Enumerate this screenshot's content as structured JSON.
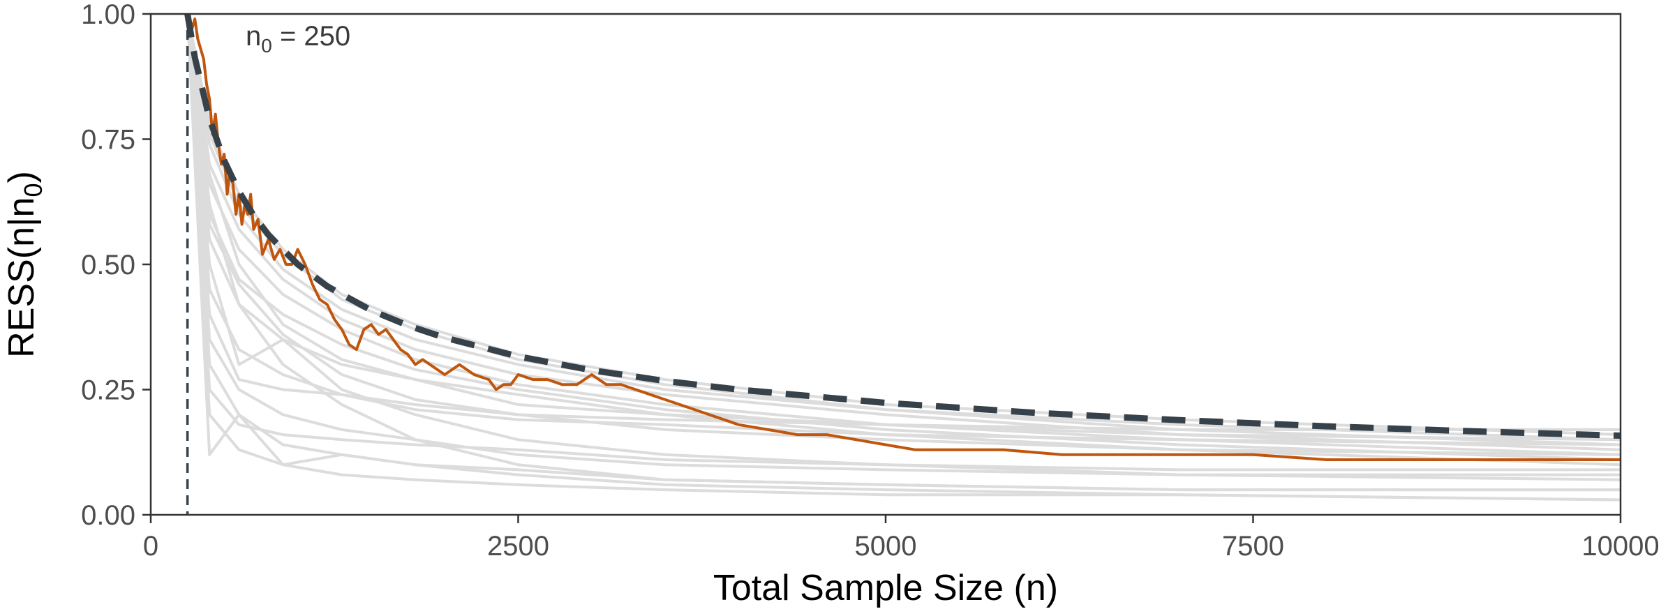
{
  "chart_data": {
    "type": "line",
    "xlabel": "Total Sample Size (n)",
    "ylabel_main": "RESS(n|n",
    "ylabel_sub": "0",
    "ylabel_end": ")",
    "xlim": [
      0,
      10000
    ],
    "ylim": [
      0,
      1
    ],
    "x_ticks": [
      0,
      2500,
      5000,
      7500,
      10000
    ],
    "x_tick_labels": [
      "0",
      "2500",
      "5000",
      "7500",
      "10000"
    ],
    "y_ticks": [
      0,
      0.25,
      0.5,
      0.75,
      1
    ],
    "y_tick_labels": [
      "0.00",
      "0.25",
      "0.50",
      "0.75",
      "1.00"
    ],
    "grid": false,
    "n0": 250,
    "annotation": {
      "prefix": "n",
      "sub": "0",
      "suffix": " = 250"
    },
    "colors": {
      "bound": "#36414a",
      "highlight": "#c0560d",
      "background_series": "#dcdcdc",
      "vline": "#36414a"
    },
    "bound": {
      "x": [
        250,
        300,
        400,
        500,
        600,
        700,
        800,
        1000,
        1200,
        1500,
        1750,
        2000,
        2500,
        3000,
        3500,
        4000,
        5000,
        6000,
        7000,
        8000,
        9000,
        10000
      ],
      "y": [
        1.0,
        0.9129,
        0.7906,
        0.7071,
        0.6455,
        0.5976,
        0.559,
        0.5,
        0.4564,
        0.4082,
        0.378,
        0.3536,
        0.3162,
        0.2887,
        0.2673,
        0.25,
        0.2236,
        0.2041,
        0.189,
        0.1768,
        0.1667,
        0.1581
      ]
    },
    "highlight": {
      "x": [
        250,
        280,
        300,
        320,
        340,
        360,
        380,
        400,
        420,
        440,
        460,
        480,
        500,
        520,
        540,
        560,
        580,
        600,
        620,
        640,
        660,
        680,
        700,
        730,
        760,
        800,
        840,
        880,
        920,
        960,
        1000,
        1050,
        1100,
        1150,
        1200,
        1250,
        1300,
        1350,
        1400,
        1450,
        1500,
        1550,
        1600,
        1650,
        1700,
        1750,
        1800,
        1850,
        1900,
        2000,
        2100,
        2200,
        2300,
        2350,
        2400,
        2450,
        2500,
        2600,
        2700,
        2800,
        2900,
        3000,
        3100,
        3200,
        3300,
        3400,
        3500,
        3600,
        3800,
        4000,
        4200,
        4400,
        4600,
        4800,
        5000,
        5200,
        5500,
        5800,
        6200,
        6600,
        7000,
        7500,
        8000,
        8500,
        9000,
        9500,
        10000
      ],
      "y": [
        1.0,
        0.97,
        0.99,
        0.95,
        0.93,
        0.91,
        0.86,
        0.83,
        0.76,
        0.8,
        0.74,
        0.7,
        0.72,
        0.64,
        0.69,
        0.66,
        0.6,
        0.64,
        0.58,
        0.62,
        0.6,
        0.64,
        0.57,
        0.59,
        0.52,
        0.55,
        0.51,
        0.53,
        0.5,
        0.5,
        0.53,
        0.5,
        0.46,
        0.43,
        0.42,
        0.39,
        0.37,
        0.34,
        0.33,
        0.37,
        0.38,
        0.36,
        0.37,
        0.35,
        0.33,
        0.32,
        0.3,
        0.31,
        0.3,
        0.28,
        0.3,
        0.28,
        0.27,
        0.25,
        0.26,
        0.26,
        0.28,
        0.27,
        0.27,
        0.26,
        0.26,
        0.28,
        0.26,
        0.26,
        0.25,
        0.24,
        0.23,
        0.22,
        0.2,
        0.18,
        0.17,
        0.16,
        0.16,
        0.15,
        0.14,
        0.13,
        0.13,
        0.13,
        0.12,
        0.12,
        0.12,
        0.12,
        0.11,
        0.11,
        0.11,
        0.11,
        0.11
      ]
    },
    "background_series": [
      {
        "x": [
          250,
          400,
          600,
          900,
          1300,
          1800,
          2500,
          3500,
          5000,
          7000,
          10000
        ],
        "y": [
          1.0,
          0.78,
          0.64,
          0.53,
          0.44,
          0.38,
          0.32,
          0.27,
          0.22,
          0.19,
          0.16
        ]
      },
      {
        "x": [
          250,
          400,
          600,
          900,
          1300,
          1800,
          2500,
          3500,
          5000,
          7000,
          10000
        ],
        "y": [
          1.0,
          0.76,
          0.62,
          0.52,
          0.43,
          0.37,
          0.31,
          0.26,
          0.21,
          0.18,
          0.15
        ]
      },
      {
        "x": [
          250,
          400,
          600,
          900,
          1300,
          1800,
          2500,
          3500,
          5000,
          7000,
          10000
        ],
        "y": [
          1.0,
          0.74,
          0.6,
          0.49,
          0.41,
          0.35,
          0.3,
          0.25,
          0.21,
          0.17,
          0.14
        ]
      },
      {
        "x": [
          250,
          400,
          600,
          900,
          1300,
          1800,
          2500,
          3500,
          5000,
          7000,
          10000
        ],
        "y": [
          1.0,
          0.7,
          0.57,
          0.47,
          0.39,
          0.33,
          0.28,
          0.24,
          0.2,
          0.16,
          0.13
        ]
      },
      {
        "x": [
          250,
          400,
          600,
          900,
          1300,
          1800,
          2500,
          3500,
          5000,
          7000,
          10000
        ],
        "y": [
          1.0,
          0.66,
          0.53,
          0.44,
          0.37,
          0.31,
          0.26,
          0.22,
          0.18,
          0.15,
          0.12
        ]
      },
      {
        "x": [
          250,
          400,
          600,
          900,
          1300,
          1800,
          2500,
          3500,
          5000,
          7000,
          10000
        ],
        "y": [
          1.0,
          0.6,
          0.47,
          0.4,
          0.34,
          0.29,
          0.25,
          0.21,
          0.17,
          0.14,
          0.11
        ]
      },
      {
        "x": [
          250,
          400,
          600,
          900,
          1300,
          1800,
          2500,
          3500,
          5000,
          7000,
          10000
        ],
        "y": [
          1.0,
          0.55,
          0.42,
          0.35,
          0.3,
          0.27,
          0.24,
          0.2,
          0.16,
          0.13,
          0.1
        ]
      },
      {
        "x": [
          250,
          400,
          600,
          900,
          1300,
          1800,
          2500,
          3500,
          5000,
          7000,
          10000
        ],
        "y": [
          1.0,
          0.45,
          0.33,
          0.28,
          0.24,
          0.21,
          0.19,
          0.18,
          0.16,
          0.15,
          0.14
        ]
      },
      {
        "x": [
          250,
          400,
          600,
          900,
          1300,
          1800,
          2500,
          3500,
          5000,
          7000,
          10000
        ],
        "y": [
          1.0,
          0.35,
          0.25,
          0.2,
          0.17,
          0.15,
          0.12,
          0.1,
          0.09,
          0.08,
          0.08
        ]
      },
      {
        "x": [
          250,
          400,
          600,
          900,
          1300,
          1800,
          2500,
          3500,
          5000,
          7000,
          10000
        ],
        "y": [
          1.0,
          0.3,
          0.2,
          0.14,
          0.12,
          0.1,
          0.09,
          0.07,
          0.06,
          0.05,
          0.05
        ]
      },
      {
        "x": [
          250,
          400,
          600,
          900,
          1300,
          1800,
          2500,
          3500,
          5000,
          7000,
          10000
        ],
        "y": [
          1.0,
          0.2,
          0.13,
          0.1,
          0.08,
          0.07,
          0.06,
          0.05,
          0.04,
          0.04,
          0.03
        ]
      },
      {
        "x": [
          250,
          400,
          600,
          900,
          1300,
          1800,
          2500,
          3500,
          5000,
          7000,
          10000
        ],
        "y": [
          1.0,
          0.12,
          0.2,
          0.1,
          0.12,
          0.1,
          0.08,
          0.06,
          0.05,
          0.04,
          0.03
        ]
      },
      {
        "x": [
          250,
          400,
          600,
          900,
          1300,
          1800,
          2500,
          3500,
          5000,
          7000,
          10000
        ],
        "y": [
          1.0,
          0.5,
          0.3,
          0.35,
          0.25,
          0.2,
          0.15,
          0.12,
          0.1,
          0.08,
          0.07
        ]
      },
      {
        "x": [
          250,
          400,
          600,
          900,
          1300,
          1800,
          2500,
          3500,
          5000,
          7000,
          10000
        ],
        "y": [
          1.0,
          0.62,
          0.42,
          0.3,
          0.22,
          0.15,
          0.1,
          0.07,
          0.06,
          0.05,
          0.05
        ]
      },
      {
        "x": [
          250,
          400,
          600,
          900,
          1300,
          1800,
          2500,
          3500,
          5000,
          7000,
          10000
        ],
        "y": [
          1.0,
          0.4,
          0.27,
          0.25,
          0.24,
          0.22,
          0.2,
          0.17,
          0.15,
          0.13,
          0.12
        ]
      },
      {
        "x": [
          250,
          400,
          600,
          900,
          1300,
          1800,
          2500,
          3500,
          5000,
          7000,
          10000
        ],
        "y": [
          1.0,
          0.68,
          0.5,
          0.38,
          0.31,
          0.27,
          0.22,
          0.2,
          0.18,
          0.16,
          0.15
        ]
      },
      {
        "x": [
          250,
          400,
          600,
          900,
          1300,
          1800,
          2500,
          3500,
          5000,
          7000,
          10000
        ],
        "y": [
          1.0,
          0.25,
          0.18,
          0.16,
          0.15,
          0.14,
          0.13,
          0.11,
          0.1,
          0.09,
          0.09
        ]
      },
      {
        "x": [
          250,
          400,
          600,
          900,
          1300,
          1800,
          2500,
          3500,
          5000,
          7000,
          10000
        ],
        "y": [
          1.0,
          0.58,
          0.46,
          0.36,
          0.28,
          0.23,
          0.2,
          0.19,
          0.18,
          0.17,
          0.17
        ]
      }
    ]
  }
}
